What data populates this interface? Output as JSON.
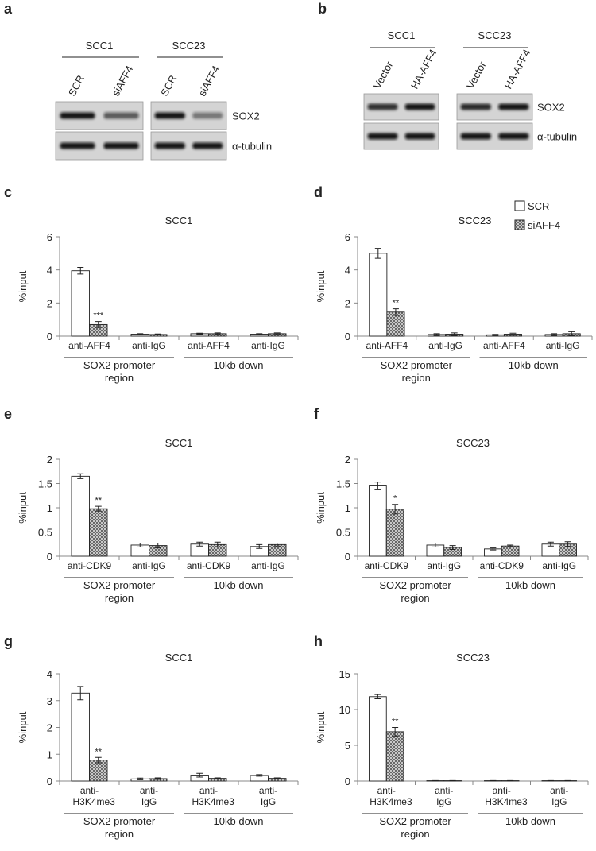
{
  "blots": [
    {
      "label": "a",
      "groups": [
        {
          "name": "SCC1",
          "lanes": [
            "SCR",
            "siAFF4"
          ]
        },
        {
          "name": "SCC23",
          "lanes": [
            "SCR",
            "siAFF4"
          ]
        }
      ],
      "rows": [
        "SOX2",
        "α-tubulin"
      ]
    },
    {
      "label": "b",
      "groups": [
        {
          "name": "SCC1",
          "lanes": [
            "Vector",
            "HA-AFF4"
          ]
        },
        {
          "name": "SCC23",
          "lanes": [
            "Vector",
            "HA-AFF4"
          ]
        }
      ],
      "rows": [
        "SOX2",
        "α-tubulin"
      ]
    }
  ],
  "chart_data": [
    {
      "type": "bar",
      "label": "c",
      "title": "SCC1",
      "ylabel": "%input",
      "categories": [
        "anti-AFF4",
        "anti-IgG",
        "anti-AFF4",
        "anti-IgG"
      ],
      "groups": [
        "SOX2 promoter region",
        "10kb down"
      ],
      "series": [
        {
          "color": "#ffffff",
          "values": [
            3.95,
            0.12,
            0.15,
            0.12
          ],
          "errors": [
            0.2,
            0.03,
            0.03,
            0.03
          ]
        },
        {
          "color": "#555555",
          "pattern": "crosshatch",
          "values": [
            0.7,
            0.1,
            0.15,
            0.15
          ],
          "errors": [
            0.18,
            0.03,
            0.05,
            0.05
          ],
          "significance": [
            "***",
            null,
            null,
            null
          ]
        }
      ],
      "ylim": [
        0,
        6
      ],
      "yticks": [
        0,
        2,
        4,
        6
      ]
    },
    {
      "type": "bar",
      "label": "d",
      "title": "SCC23",
      "ylabel": "%input",
      "categories": [
        "anti-AFF4",
        "anti-IgG",
        "anti-AFF4",
        "anti-IgG"
      ],
      "groups": [
        "SOX2 promoter region",
        "10kb down"
      ],
      "series": [
        {
          "name": "SCR",
          "color": "#ffffff",
          "values": [
            5.0,
            0.1,
            0.08,
            0.1
          ],
          "errors": [
            0.3,
            0.05,
            0.03,
            0.05
          ]
        },
        {
          "name": "siAFF4",
          "color": "#555555",
          "pattern": "crosshatch",
          "values": [
            1.45,
            0.12,
            0.12,
            0.15
          ],
          "errors": [
            0.2,
            0.08,
            0.06,
            0.12
          ],
          "significance": [
            "**",
            null,
            null,
            null
          ]
        }
      ],
      "ylim": [
        0,
        6
      ],
      "yticks": [
        0,
        2,
        4,
        6
      ],
      "legend": "upper right"
    },
    {
      "type": "bar",
      "label": "e",
      "title": "SCC1",
      "ylabel": "%input",
      "categories": [
        "anti-CDK9",
        "anti-IgG",
        "anti-CDK9",
        "anti-IgG"
      ],
      "groups": [
        "SOX2 promoter region",
        "10kb down"
      ],
      "series": [
        {
          "color": "#ffffff",
          "values": [
            1.65,
            0.23,
            0.25,
            0.2
          ],
          "errors": [
            0.05,
            0.04,
            0.04,
            0.04
          ]
        },
        {
          "color": "#555555",
          "pattern": "crosshatch",
          "values": [
            0.98,
            0.22,
            0.24,
            0.24
          ],
          "errors": [
            0.05,
            0.05,
            0.05,
            0.03
          ],
          "significance": [
            "**",
            null,
            null,
            null
          ]
        }
      ],
      "ylim": [
        0,
        2
      ],
      "yticks": [
        0,
        0.5,
        1,
        1.5,
        2
      ]
    },
    {
      "type": "bar",
      "label": "f",
      "title": "SCC23",
      "ylabel": "%input",
      "categories": [
        "anti-CDK9",
        "anti-IgG",
        "anti-CDK9",
        "anti-IgG"
      ],
      "groups": [
        "SOX2 promoter region",
        "10kb down"
      ],
      "series": [
        {
          "color": "#ffffff",
          "values": [
            1.45,
            0.23,
            0.15,
            0.25
          ],
          "errors": [
            0.08,
            0.04,
            0.02,
            0.04
          ]
        },
        {
          "color": "#555555",
          "pattern": "crosshatch",
          "values": [
            0.97,
            0.18,
            0.21,
            0.25
          ],
          "errors": [
            0.1,
            0.04,
            0.02,
            0.05
          ],
          "significance": [
            "*",
            null,
            null,
            null
          ]
        }
      ],
      "ylim": [
        0,
        2
      ],
      "yticks": [
        0,
        0.5,
        1,
        1.5,
        2
      ]
    },
    {
      "type": "bar",
      "label": "g",
      "title": "SCC1",
      "ylabel": "%input",
      "categories": [
        "anti-H3K4me3",
        "anti-IgG",
        "anti-H3K4me3",
        "anti-IgG"
      ],
      "groups": [
        "SOX2 promoter region",
        "10kb down"
      ],
      "series": [
        {
          "color": "#ffffff",
          "values": [
            3.28,
            0.08,
            0.22,
            0.21
          ],
          "errors": [
            0.25,
            0.03,
            0.07,
            0.03
          ]
        },
        {
          "color": "#555555",
          "pattern": "crosshatch",
          "values": [
            0.78,
            0.09,
            0.1,
            0.1
          ],
          "errors": [
            0.1,
            0.03,
            0.02,
            0.02
          ],
          "significance": [
            "**",
            null,
            null,
            null
          ]
        }
      ],
      "ylim": [
        0,
        4
      ],
      "yticks": [
        0,
        1,
        2,
        3,
        4
      ]
    },
    {
      "type": "bar",
      "label": "h",
      "title": "SCC23",
      "ylabel": "%input",
      "categories": [
        "anti-H3K4me3",
        "anti-IgG",
        "anti-H3K4me3",
        "anti-IgG"
      ],
      "groups": [
        "SOX2 promoter region",
        "10kb down"
      ],
      "series": [
        {
          "color": "#ffffff",
          "values": [
            11.8,
            0.05,
            0.05,
            0.05
          ],
          "errors": [
            0.3,
            0.02,
            0.02,
            0.02
          ]
        },
        {
          "color": "#555555",
          "pattern": "crosshatch",
          "values": [
            6.9,
            0.05,
            0.05,
            0.05
          ],
          "errors": [
            0.6,
            0.02,
            0.02,
            0.02
          ],
          "significance": [
            "**",
            null,
            null,
            null
          ]
        }
      ],
      "ylim": [
        0,
        15
      ],
      "yticks": [
        0,
        5,
        10,
        15
      ]
    }
  ]
}
